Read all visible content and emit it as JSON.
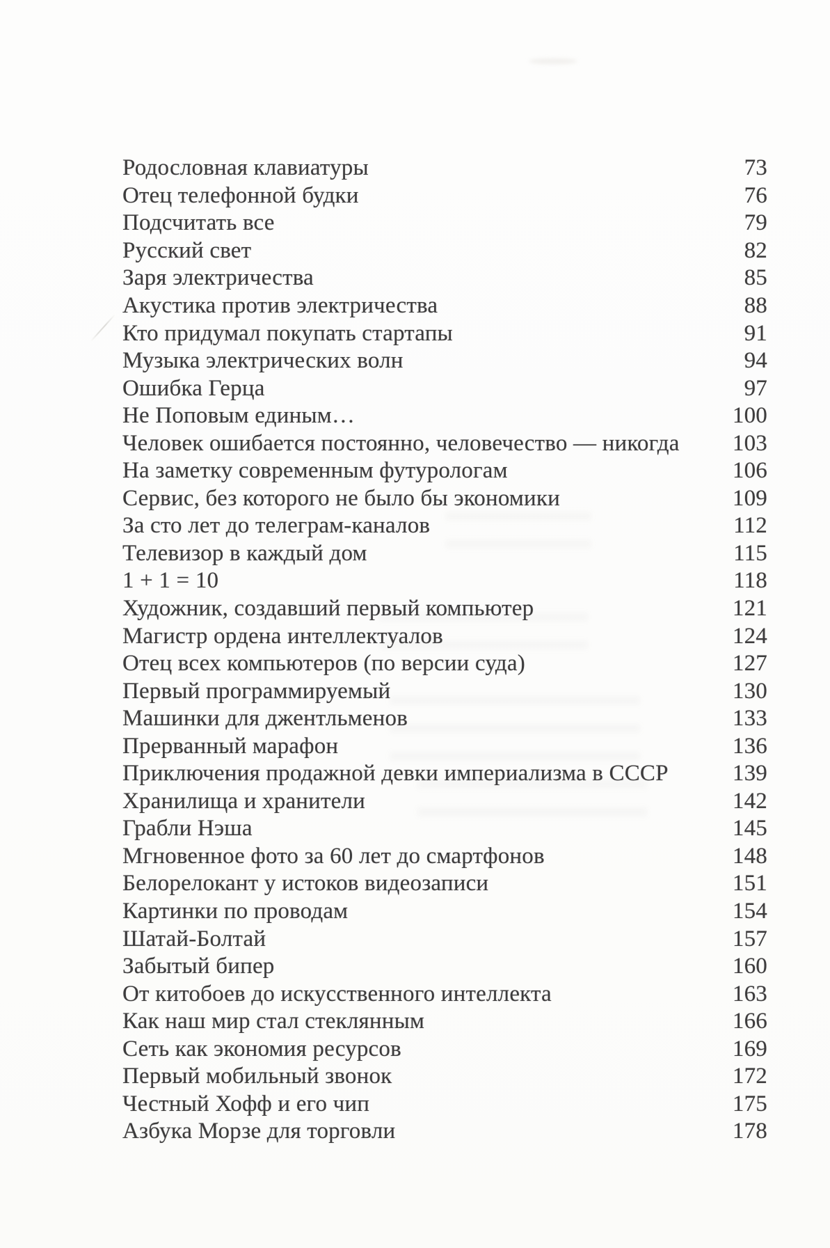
{
  "page": {
    "kind": "book-table-of-contents-scan",
    "language": "ru",
    "text_color": "#3d3c3d",
    "background_color": "#fdfdfc"
  },
  "toc": {
    "entries": [
      {
        "title": "Родословная клавиатуры",
        "page": "73"
      },
      {
        "title": "Отец телефонной будки",
        "page": "76"
      },
      {
        "title": "Подсчитать все",
        "page": "79"
      },
      {
        "title": "Русский свет",
        "page": "82"
      },
      {
        "title": "Заря электричества",
        "page": "85"
      },
      {
        "title": "Акустика против электричества",
        "page": "88"
      },
      {
        "title": "Кто придумал покупать стартапы",
        "page": "91"
      },
      {
        "title": "Музыка электрических волн",
        "page": "94"
      },
      {
        "title": "Ошибка Герца",
        "page": "97"
      },
      {
        "title": "Не Поповым единым…",
        "page": "100"
      },
      {
        "title": "Человек ошибается постоянно, человечество — никогда",
        "page": "103"
      },
      {
        "title": "На заметку современным футурологам",
        "page": "106"
      },
      {
        "title": "Сервис, без которого не было бы экономики",
        "page": "109"
      },
      {
        "title": "За сто лет до телеграм-каналов",
        "page": "112"
      },
      {
        "title": "Телевизор в каждый дом",
        "page": "115"
      },
      {
        "title": "1 + 1 = 10",
        "page": "118"
      },
      {
        "title": "Художник, создавший первый компьютер",
        "page": "121"
      },
      {
        "title": "Магистр ордена интеллектуалов",
        "page": "124"
      },
      {
        "title": "Отец всех компьютеров (по версии суда)",
        "page": "127"
      },
      {
        "title": "Первый программируемый",
        "page": "130"
      },
      {
        "title": "Машинки для джентльменов",
        "page": "133"
      },
      {
        "title": "Прерванный марафон",
        "page": "136"
      },
      {
        "title": "Приключения продажной девки империализма в СССР",
        "page": "139"
      },
      {
        "title": "Хранилища и хранители",
        "page": "142"
      },
      {
        "title": "Грабли Нэша",
        "page": "145"
      },
      {
        "title": "Мгновенное фото за 60 лет до смартфонов",
        "page": "148"
      },
      {
        "title": "Белорелокант у истоков видеозаписи",
        "page": "151"
      },
      {
        "title": "Картинки по проводам",
        "page": "154"
      },
      {
        "title": "Шатай-Болтай",
        "page": "157"
      },
      {
        "title": "Забытый бипер",
        "page": "160"
      },
      {
        "title": "От китобоев до искусственного интеллекта",
        "page": "163"
      },
      {
        "title": "Как наш мир стал стеклянным",
        "page": "166"
      },
      {
        "title": "Сеть как экономия ресурсов",
        "page": "169"
      },
      {
        "title": "Первый мобильный звонок",
        "page": "172"
      },
      {
        "title": "Честный Хофф и его чип",
        "page": "175"
      },
      {
        "title": "Азбука Морзе для торговли",
        "page": "178"
      }
    ]
  }
}
